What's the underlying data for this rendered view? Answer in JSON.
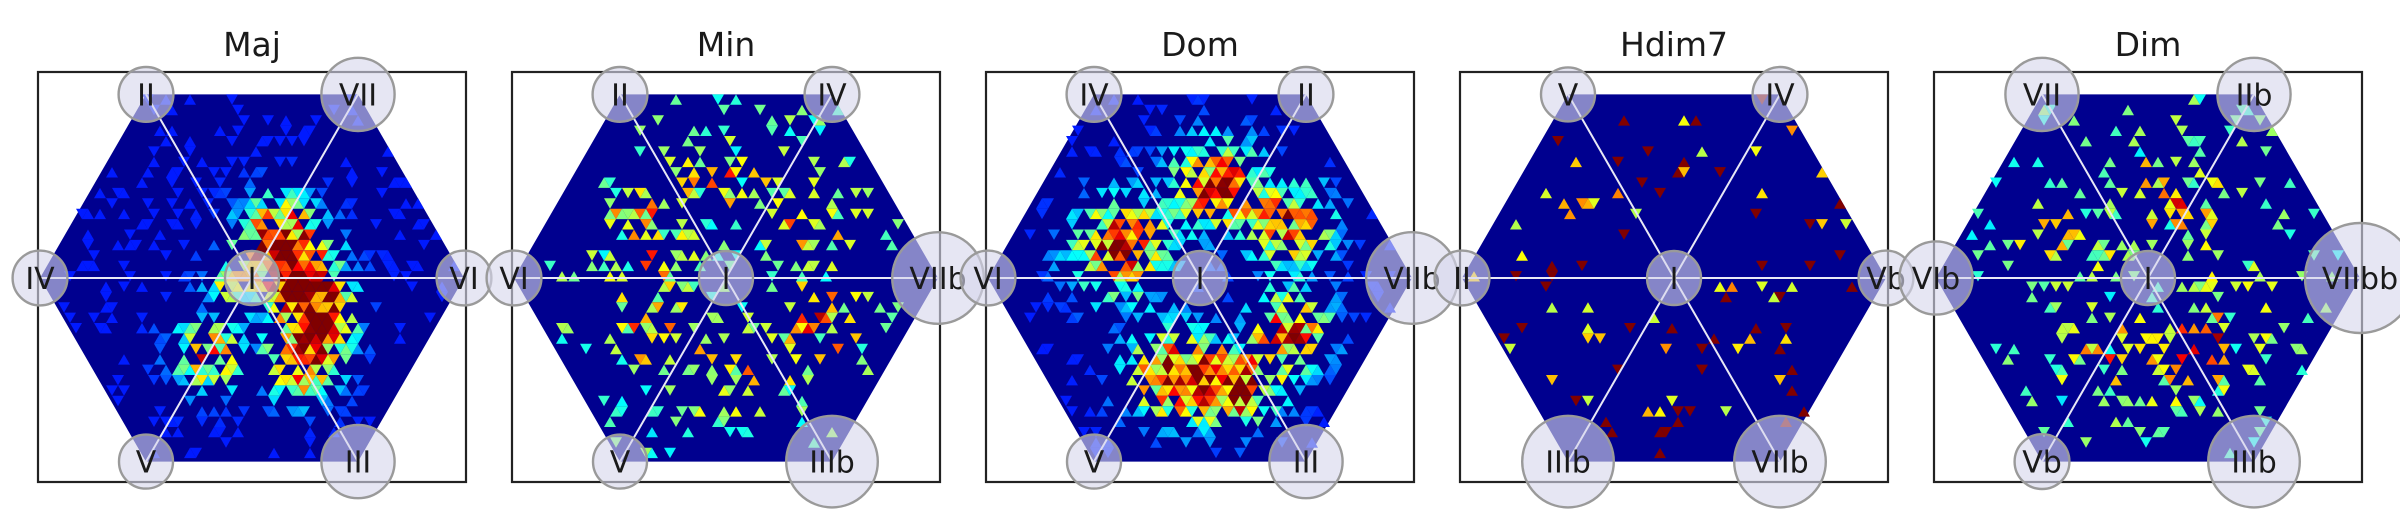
{
  "chart_data": {
    "type": "heatmap",
    "description_style": "Triangular-lattice density heatmaps inside a hexagon, one panel per chord quality; labelled interval nodes at the center, 6 vertices and 2 edge-midpoints; node circle size grows with label length.",
    "colormap": "jet",
    "background_color": "#00008f",
    "panels": [
      {
        "title": "Maj",
        "nodes": {
          "center": "I",
          "top_left": "II",
          "top_right": "VII",
          "left": "IV",
          "right": "VI",
          "bottom_left": "V",
          "bottom_right": "III"
        },
        "hotspots": [
          {
            "dir": 0,
            "dist": 0.23,
            "strength": 1.0,
            "spread": 0.13
          },
          {
            "dir": 60,
            "dist": 0.24,
            "strength": 0.95,
            "spread": 0.13
          },
          {
            "dir": 180,
            "dist": 0.1,
            "strength": 0.55,
            "spread": 0.09
          },
          {
            "dir": 240,
            "dist": 0.42,
            "strength": 0.8,
            "spread": 0.12
          },
          {
            "dir": 300,
            "dist": 0.48,
            "strength": 0.85,
            "spread": 0.12
          },
          {
            "dir": 330,
            "dist": 0.38,
            "strength": 0.9,
            "spread": 0.12
          }
        ],
        "sparse": false
      },
      {
        "title": "Min",
        "nodes": {
          "center": "I",
          "top_left": "II",
          "top_right": "IV",
          "left": "VI",
          "right": "VIIb",
          "bottom_left": "V",
          "bottom_right": "IIIb"
        },
        "hotspots": [
          {
            "dir": 150,
            "dist": 0.42,
            "strength": 0.8,
            "spread": 0.15
          },
          {
            "dir": 90,
            "dist": 0.5,
            "strength": 0.75,
            "spread": 0.15
          },
          {
            "dir": 30,
            "dist": 0.5,
            "strength": 0.7,
            "spread": 0.15
          },
          {
            "dir": 210,
            "dist": 0.42,
            "strength": 0.7,
            "spread": 0.15
          },
          {
            "dir": 270,
            "dist": 0.45,
            "strength": 0.7,
            "spread": 0.13
          },
          {
            "dir": 330,
            "dist": 0.5,
            "strength": 0.8,
            "spread": 0.15
          }
        ],
        "sparse": true
      },
      {
        "title": "Dom",
        "nodes": {
          "center": "I",
          "top_left": "IV",
          "top_right": "II",
          "left": "VI",
          "right": "VIIb",
          "bottom_left": "V",
          "bottom_right": "III"
        },
        "hotspots": [
          {
            "dir": 160,
            "dist": 0.4,
            "strength": 1.0,
            "spread": 0.16
          },
          {
            "dir": 80,
            "dist": 0.45,
            "strength": 0.95,
            "spread": 0.15
          },
          {
            "dir": 30,
            "dist": 0.5,
            "strength": 0.85,
            "spread": 0.14
          },
          {
            "dir": 330,
            "dist": 0.5,
            "strength": 0.9,
            "spread": 0.13
          },
          {
            "dir": 255,
            "dist": 0.48,
            "strength": 1.0,
            "spread": 0.15
          },
          {
            "dir": 290,
            "dist": 0.55,
            "strength": 1.0,
            "spread": 0.13
          }
        ],
        "sparse": false
      },
      {
        "title": "Hdim7",
        "nodes": {
          "center": "I",
          "top_left": "V",
          "top_right": "IV",
          "left": "II",
          "right": "Vb",
          "bottom_left": "IIIb",
          "bottom_right": "VIIb"
        },
        "hotspots": [
          {
            "dir": 80,
            "dist": 0.55,
            "strength": 0.8,
            "spread": 0.1
          },
          {
            "dir": 150,
            "dist": 0.5,
            "strength": 0.6,
            "spread": 0.15
          },
          {
            "dir": 200,
            "dist": 0.5,
            "strength": 0.55,
            "spread": 0.15
          },
          {
            "dir": 340,
            "dist": 0.5,
            "strength": 0.55,
            "spread": 0.15
          }
        ],
        "sparse": true,
        "very_sparse": true
      },
      {
        "title": "Dim",
        "nodes": {
          "center": "I",
          "top_left": "VII",
          "top_right": "IIb",
          "left": "VIb",
          "right": "VIIbb",
          "bottom_left": "Vb",
          "bottom_right": "IIIb"
        },
        "hotspots": [
          {
            "dir": 70,
            "dist": 0.4,
            "strength": 0.85,
            "spread": 0.15
          },
          {
            "dir": 160,
            "dist": 0.45,
            "strength": 0.7,
            "spread": 0.15
          },
          {
            "dir": 240,
            "dist": 0.4,
            "strength": 0.8,
            "spread": 0.14
          },
          {
            "dir": 300,
            "dist": 0.45,
            "strength": 0.8,
            "spread": 0.14
          },
          {
            "dir": 340,
            "dist": 0.45,
            "strength": 0.75,
            "spread": 0.14
          }
        ],
        "sparse": true
      }
    ]
  }
}
